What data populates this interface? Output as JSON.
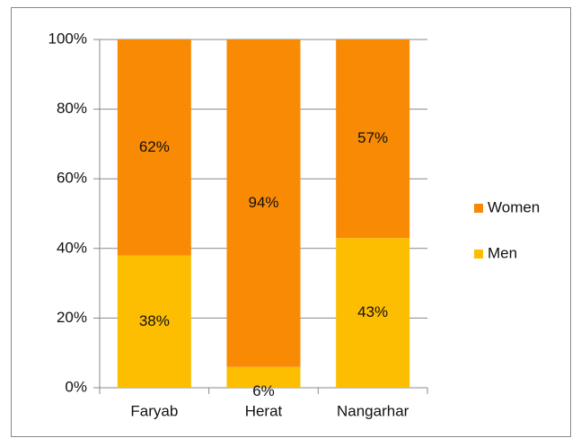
{
  "chart_data": {
    "type": "stacked_bar",
    "categories": [
      "Faryab",
      "Herat",
      "Nangarhar"
    ],
    "series": [
      {
        "name": "Men",
        "color": "#fdbd00",
        "values": [
          38,
          6,
          43
        ],
        "value_labels": [
          "38%",
          "6%",
          "43%"
        ]
      },
      {
        "name": "Women",
        "color": "#f88a04",
        "values": [
          62,
          94,
          57
        ],
        "value_labels": [
          "62%",
          "94%",
          "57%"
        ]
      }
    ],
    "ylim": [
      0,
      100
    ],
    "yticks": [
      {
        "value": 0,
        "label": "0%"
      },
      {
        "value": 20,
        "label": "20%"
      },
      {
        "value": 40,
        "label": "40%"
      },
      {
        "value": 60,
        "label": "60%"
      },
      {
        "value": 80,
        "label": "80%"
      },
      {
        "value": 100,
        "label": "100%"
      }
    ],
    "grid": true,
    "legend": "right"
  }
}
